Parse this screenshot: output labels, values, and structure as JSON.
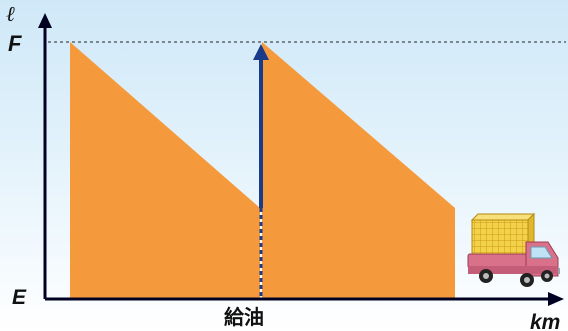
{
  "labels": {
    "y_unit": "ℓ",
    "full": "F",
    "empty": "E",
    "x_unit": "km",
    "refuel": "給油"
  },
  "colors": {
    "fuel_fill": "#f59a3c",
    "axis": "#000022",
    "refuel_arrow": "#1a3a8a",
    "dash_line": "#222222"
  },
  "icons": {
    "vehicle": "delivery-truck-icon"
  }
}
